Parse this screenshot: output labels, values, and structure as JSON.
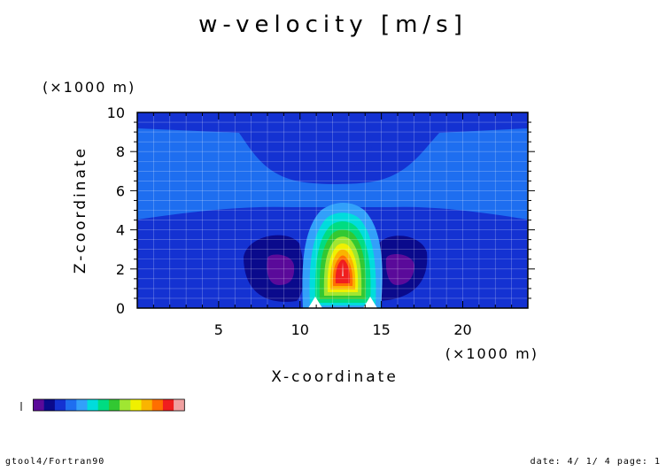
{
  "chart_data": {
    "type": "heatmap",
    "title": "w-velocity [m/s]",
    "xlabel": "X-coordinate",
    "ylabel": "Z-coordinate",
    "x_unit": "(×1000 m)",
    "y_unit": "(×1000 m)",
    "xlim": [
      0,
      24
    ],
    "ylim": [
      0,
      10
    ],
    "x_ticks": [
      5,
      10,
      15,
      20
    ],
    "y_ticks": [
      0,
      2,
      4,
      6,
      8,
      10
    ],
    "grid": true,
    "colorbar_levels": [
      "#5a0a9a",
      "#0a0a8c",
      "#1432d2",
      "#1e6ef0",
      "#32a0fa",
      "#00dcdc",
      "#00dc82",
      "#32c832",
      "#a0e632",
      "#f0f000",
      "#fab400",
      "#ff6e00",
      "#f01e1e",
      "#f0a0a0"
    ]
  },
  "footer": {
    "left": "gtool4/Fortran90",
    "right": "date: 4/ 1/ 4 page: 1"
  }
}
